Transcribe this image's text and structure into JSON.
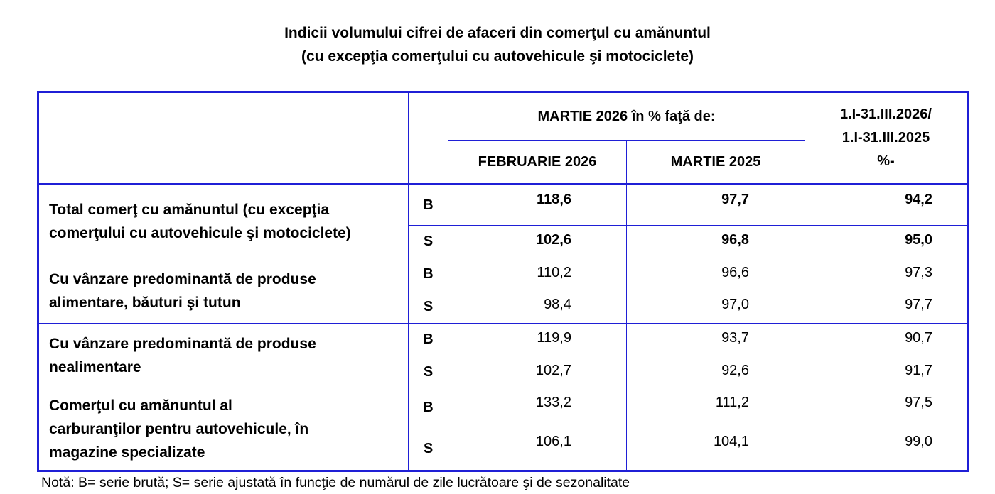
{
  "title": [
    "Indicii volumului cifrei de afaceri din comerţul cu amănuntul",
    "(cu excepţia comerţului cu autovehicule şi motociclete)"
  ],
  "header": {
    "group": "MARTIE 2026 în % faţă de:",
    "columns": [
      "FEBRUARIE 2026",
      "MARTIE 2025"
    ],
    "cumulative": [
      "1.I-31.III.2026/",
      "1.I-31.III.2025",
      "%-"
    ]
  },
  "rows": [
    {
      "label": [
        "Total comerţ cu amănuntul (cu excepţia",
        "comerţului cu autovehicule şi motociclete)"
      ],
      "series": [
        {
          "code": "B",
          "values": [
            "118,6",
            "97,7",
            "94,2"
          ]
        },
        {
          "code": "S",
          "values": [
            "102,6",
            "96,8",
            "95,0"
          ]
        }
      ]
    },
    {
      "label": [
        "Cu vânzare predominantă de produse",
        "alimentare, băuturi şi tutun"
      ],
      "series": [
        {
          "code": "B",
          "values": [
            "110,2",
            "96,6",
            "97,3"
          ]
        },
        {
          "code": "S",
          "values": [
            "98,4",
            "97,0",
            "97,7"
          ]
        }
      ]
    },
    {
      "label": [
        "Cu vânzare predominantă de produse",
        "nealimentare"
      ],
      "series": [
        {
          "code": "B",
          "values": [
            "119,9",
            "93,7",
            "90,7"
          ]
        },
        {
          "code": "S",
          "values": [
            "102,7",
            "92,6",
            "91,7"
          ]
        }
      ]
    },
    {
      "label": [
        "Comerţul cu amănuntul al",
        "carburanţilor pentru autovehicule, în",
        "magazine specializate"
      ],
      "series": [
        {
          "code": "B",
          "values": [
            "133,2",
            "111,2",
            "97,5"
          ]
        },
        {
          "code": "S",
          "values": [
            "106,1",
            "104,1",
            "99,0"
          ]
        }
      ]
    }
  ],
  "note": "Notă: B= serie brută; S= serie ajustată în funcţie de numărul de zile lucrătoare şi de sezonalitate"
}
